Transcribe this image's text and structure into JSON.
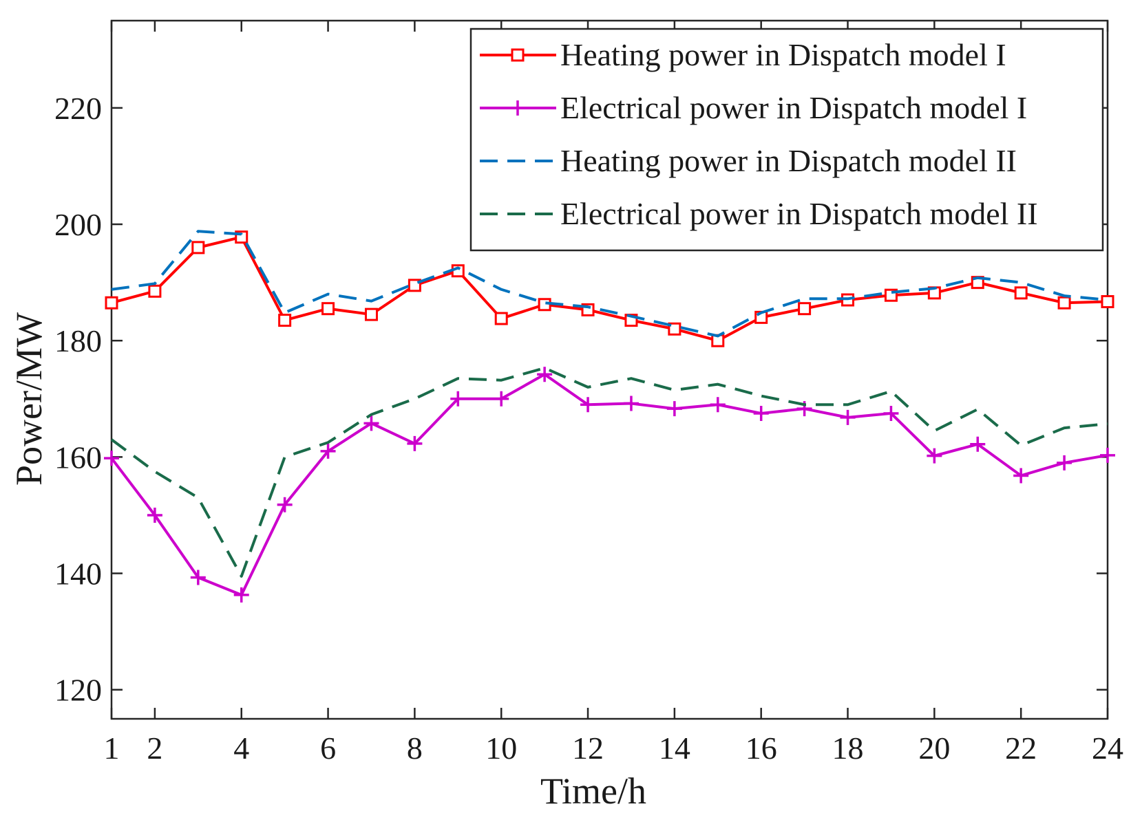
{
  "chart_data": {
    "type": "line",
    "title": "",
    "xlabel": "Time/h",
    "ylabel": "Power/MW",
    "xlim": [
      1,
      24
    ],
    "ylim": [
      115,
      235
    ],
    "grid": false,
    "legend_position": "top-right",
    "x": [
      1,
      2,
      3,
      4,
      5,
      6,
      7,
      8,
      9,
      10,
      11,
      12,
      13,
      14,
      15,
      16,
      17,
      18,
      19,
      20,
      21,
      22,
      23,
      24
    ],
    "x_ticks": [
      1,
      2,
      4,
      6,
      8,
      10,
      12,
      14,
      16,
      18,
      20,
      22,
      24
    ],
    "y_ticks": [
      120,
      140,
      160,
      180,
      200,
      220
    ],
    "series": [
      {
        "name": "Heating power in Dispatch model I",
        "color": "#ff0000",
        "style": "solid",
        "marker": "square",
        "values": [
          186.5,
          188.5,
          196,
          197.8,
          183.5,
          185.5,
          184.5,
          189.5,
          192,
          183.8,
          186.2,
          185.3,
          183.5,
          182,
          180,
          184,
          185.5,
          187,
          187.8,
          188.2,
          190,
          188.2,
          186.5,
          186.7
        ]
      },
      {
        "name": "Electrical power in Dispatch model I",
        "color": "#cc00cc",
        "style": "solid",
        "marker": "plus",
        "values": [
          159.8,
          150,
          139.3,
          136.3,
          151.8,
          161,
          165.8,
          162.3,
          170,
          170,
          174.2,
          169,
          169.2,
          168.3,
          169,
          167.5,
          168.3,
          166.8,
          167.5,
          160.2,
          162.2,
          156.8,
          159,
          160.3
        ]
      },
      {
        "name": "Heating power in Dispatch model II",
        "color": "#0072bd",
        "style": "dashed",
        "marker": "none",
        "values": [
          188.8,
          189.8,
          198.8,
          198.3,
          184.8,
          188,
          186.8,
          189.8,
          192.5,
          188.8,
          186.5,
          185.8,
          184.2,
          182.5,
          180.8,
          184.8,
          187.2,
          187.2,
          188.3,
          189,
          190.8,
          190,
          187.7,
          187
        ]
      },
      {
        "name": "Electrical power in Dispatch model II",
        "color": "#1a6b4a",
        "style": "dashed",
        "marker": "none",
        "values": [
          163,
          157.5,
          153,
          139.5,
          160,
          162.5,
          167.3,
          170,
          173.5,
          173.2,
          175.3,
          172,
          173.5,
          171.5,
          172.5,
          170.5,
          169,
          169,
          171.3,
          164.5,
          168.2,
          162,
          165,
          165.7
        ]
      }
    ]
  }
}
